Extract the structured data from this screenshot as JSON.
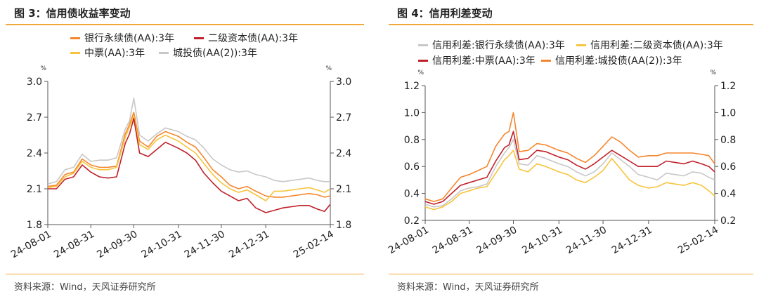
{
  "charts": [
    {
      "id": "left",
      "title": "图 3：信用债收益率变动",
      "source": "资料来源：Wind，天风证券研究所",
      "unit_left": "%",
      "unit_right": "%",
      "legend": [
        {
          "label": "银行永续债(AA):3年",
          "color": "#f5862d"
        },
        {
          "label": "二级资本债(AA):3年",
          "color": "#c0202a"
        },
        {
          "label": "中票(AA):3年",
          "color": "#f7c43d"
        },
        {
          "label": "城投债(AA(2)):3年",
          "color": "#c8c8c8"
        }
      ]
    },
    {
      "id": "right",
      "title": "图 4：信用利差变动",
      "source": "资料来源：Wind，天风证券研究所",
      "unit_left": "%",
      "unit_right": "%",
      "legend": [
        {
          "label": "信用利差:银行永续债(AA):3年",
          "color": "#c8c8c8"
        },
        {
          "label": "信用利差:二级资本债(AA):3年",
          "color": "#f7c43d"
        },
        {
          "label": "信用利差:中票(AA):3年",
          "color": "#c0202a"
        },
        {
          "label": "信用利差:城投债(AA(2)):3年",
          "color": "#f5862d"
        }
      ]
    }
  ],
  "chart_data": [
    {
      "type": "line",
      "x_ticks": [
        "24-08-01",
        "24-08-31",
        "24-09-30",
        "24-10-31",
        "24-11-30",
        "24-12-31",
        "25-02-14"
      ],
      "x": [
        "24-08-01",
        "24-08-07",
        "24-08-13",
        "24-08-19",
        "24-08-25",
        "24-08-31",
        "24-09-06",
        "24-09-12",
        "24-09-18",
        "24-09-24",
        "24-09-27",
        "24-09-30",
        "24-10-04",
        "24-10-10",
        "24-10-16",
        "24-10-22",
        "24-10-31",
        "24-11-06",
        "24-11-12",
        "24-11-18",
        "24-11-24",
        "24-11-30",
        "24-12-06",
        "24-12-12",
        "24-12-18",
        "24-12-24",
        "24-12-31",
        "25-01-06",
        "25-01-12",
        "25-01-18",
        "25-01-24",
        "25-01-30",
        "25-02-05",
        "25-02-10",
        "25-02-14"
      ],
      "ylim": [
        1.8,
        3.0
      ],
      "y_ticks": [
        1.8,
        2.1,
        2.4,
        2.7,
        3.0
      ],
      "series": [
        {
          "name": "城投债(AA(2)):3年",
          "color": "#c8c8c8",
          "values": [
            2.14,
            2.16,
            2.26,
            2.28,
            2.39,
            2.33,
            2.34,
            2.34,
            2.36,
            2.6,
            2.67,
            2.86,
            2.55,
            2.5,
            2.56,
            2.61,
            2.58,
            2.54,
            2.51,
            2.44,
            2.35,
            2.3,
            2.26,
            2.24,
            2.25,
            2.22,
            2.2,
            2.17,
            2.16,
            2.17,
            2.18,
            2.19,
            2.17,
            2.16,
            2.16
          ]
        },
        {
          "name": "银行永续债(AA):3年",
          "color": "#f5862d",
          "values": [
            2.12,
            2.13,
            2.22,
            2.24,
            2.35,
            2.3,
            2.28,
            2.28,
            2.29,
            2.56,
            2.64,
            2.74,
            2.5,
            2.45,
            2.54,
            2.58,
            2.54,
            2.49,
            2.45,
            2.36,
            2.26,
            2.2,
            2.13,
            2.1,
            2.12,
            2.08,
            2.04,
            2.03,
            2.03,
            2.04,
            2.05,
            2.06,
            2.05,
            2.03,
            2.04
          ]
        },
        {
          "name": "中票(AA):3年",
          "color": "#f7c43d",
          "values": [
            2.11,
            2.12,
            2.2,
            2.23,
            2.33,
            2.28,
            2.26,
            2.26,
            2.28,
            2.53,
            2.62,
            2.71,
            2.47,
            2.43,
            2.51,
            2.55,
            2.5,
            2.45,
            2.4,
            2.31,
            2.22,
            2.15,
            2.1,
            2.07,
            2.09,
            2.05,
            2.0,
            2.08,
            2.08,
            2.09,
            2.1,
            2.11,
            2.09,
            2.07,
            2.1
          ]
        },
        {
          "name": "二级资本债(AA):3年",
          "color": "#c0202a",
          "values": [
            2.1,
            2.1,
            2.18,
            2.2,
            2.3,
            2.24,
            2.2,
            2.19,
            2.2,
            2.48,
            2.56,
            2.69,
            2.4,
            2.37,
            2.43,
            2.49,
            2.44,
            2.4,
            2.34,
            2.23,
            2.15,
            2.08,
            2.04,
            2.0,
            2.02,
            1.94,
            1.9,
            1.92,
            1.94,
            1.95,
            1.96,
            1.96,
            1.93,
            1.91,
            1.97
          ]
        }
      ]
    },
    {
      "type": "line",
      "x_ticks": [
        "24-08-01",
        "24-08-31",
        "24-09-30",
        "24-10-31",
        "24-11-30",
        "24-12-31",
        "25-02-14"
      ],
      "x": [
        "24-08-01",
        "24-08-07",
        "24-08-13",
        "24-08-19",
        "24-08-25",
        "24-08-31",
        "24-09-06",
        "24-09-12",
        "24-09-18",
        "24-09-24",
        "24-09-27",
        "24-09-30",
        "24-10-04",
        "24-10-10",
        "24-10-16",
        "24-10-22",
        "24-10-31",
        "24-11-06",
        "24-11-12",
        "24-11-18",
        "24-11-24",
        "24-11-30",
        "24-12-06",
        "24-12-12",
        "24-12-18",
        "24-12-24",
        "24-12-31",
        "25-01-06",
        "25-01-12",
        "25-01-18",
        "25-01-24",
        "25-01-30",
        "25-02-05",
        "25-02-10",
        "25-02-14"
      ],
      "ylim": [
        0.2,
        1.2
      ],
      "y_ticks": [
        0.2,
        0.4,
        0.6,
        0.8,
        1.0,
        1.2
      ],
      "series": [
        {
          "name": "信用利差:银行永续债(AA):3年",
          "color": "#c8c8c8",
          "values": [
            0.32,
            0.3,
            0.31,
            0.36,
            0.42,
            0.44,
            0.45,
            0.47,
            0.6,
            0.7,
            0.74,
            0.8,
            0.62,
            0.61,
            0.68,
            0.66,
            0.62,
            0.6,
            0.56,
            0.53,
            0.56,
            0.62,
            0.7,
            0.65,
            0.6,
            0.54,
            0.52,
            0.5,
            0.55,
            0.54,
            0.53,
            0.56,
            0.55,
            0.52,
            0.5
          ]
        },
        {
          "name": "信用利差:二级资本债(AA):3年",
          "color": "#f7c43d",
          "values": [
            0.3,
            0.28,
            0.3,
            0.34,
            0.4,
            0.42,
            0.44,
            0.45,
            0.55,
            0.65,
            0.68,
            0.72,
            0.58,
            0.56,
            0.62,
            0.6,
            0.56,
            0.54,
            0.5,
            0.48,
            0.52,
            0.57,
            0.66,
            0.58,
            0.5,
            0.46,
            0.44,
            0.45,
            0.48,
            0.47,
            0.46,
            0.48,
            0.46,
            0.42,
            0.38
          ]
        },
        {
          "name": "信用利差:中票(AA):3年",
          "color": "#c0202a",
          "values": [
            0.34,
            0.32,
            0.34,
            0.4,
            0.46,
            0.48,
            0.5,
            0.52,
            0.64,
            0.74,
            0.76,
            0.86,
            0.65,
            0.66,
            0.72,
            0.71,
            0.67,
            0.65,
            0.61,
            0.58,
            0.62,
            0.67,
            0.72,
            0.68,
            0.64,
            0.6,
            0.6,
            0.6,
            0.64,
            0.63,
            0.62,
            0.64,
            0.62,
            0.6,
            0.56
          ]
        },
        {
          "name": "信用利差:城投债(AA(2)):3年",
          "color": "#f5862d",
          "values": [
            0.36,
            0.34,
            0.36,
            0.44,
            0.52,
            0.54,
            0.57,
            0.6,
            0.75,
            0.84,
            0.86,
            1.0,
            0.71,
            0.72,
            0.77,
            0.76,
            0.72,
            0.7,
            0.66,
            0.63,
            0.68,
            0.75,
            0.82,
            0.78,
            0.72,
            0.67,
            0.68,
            0.68,
            0.7,
            0.7,
            0.7,
            0.7,
            0.69,
            0.68,
            0.62
          ]
        }
      ]
    }
  ]
}
